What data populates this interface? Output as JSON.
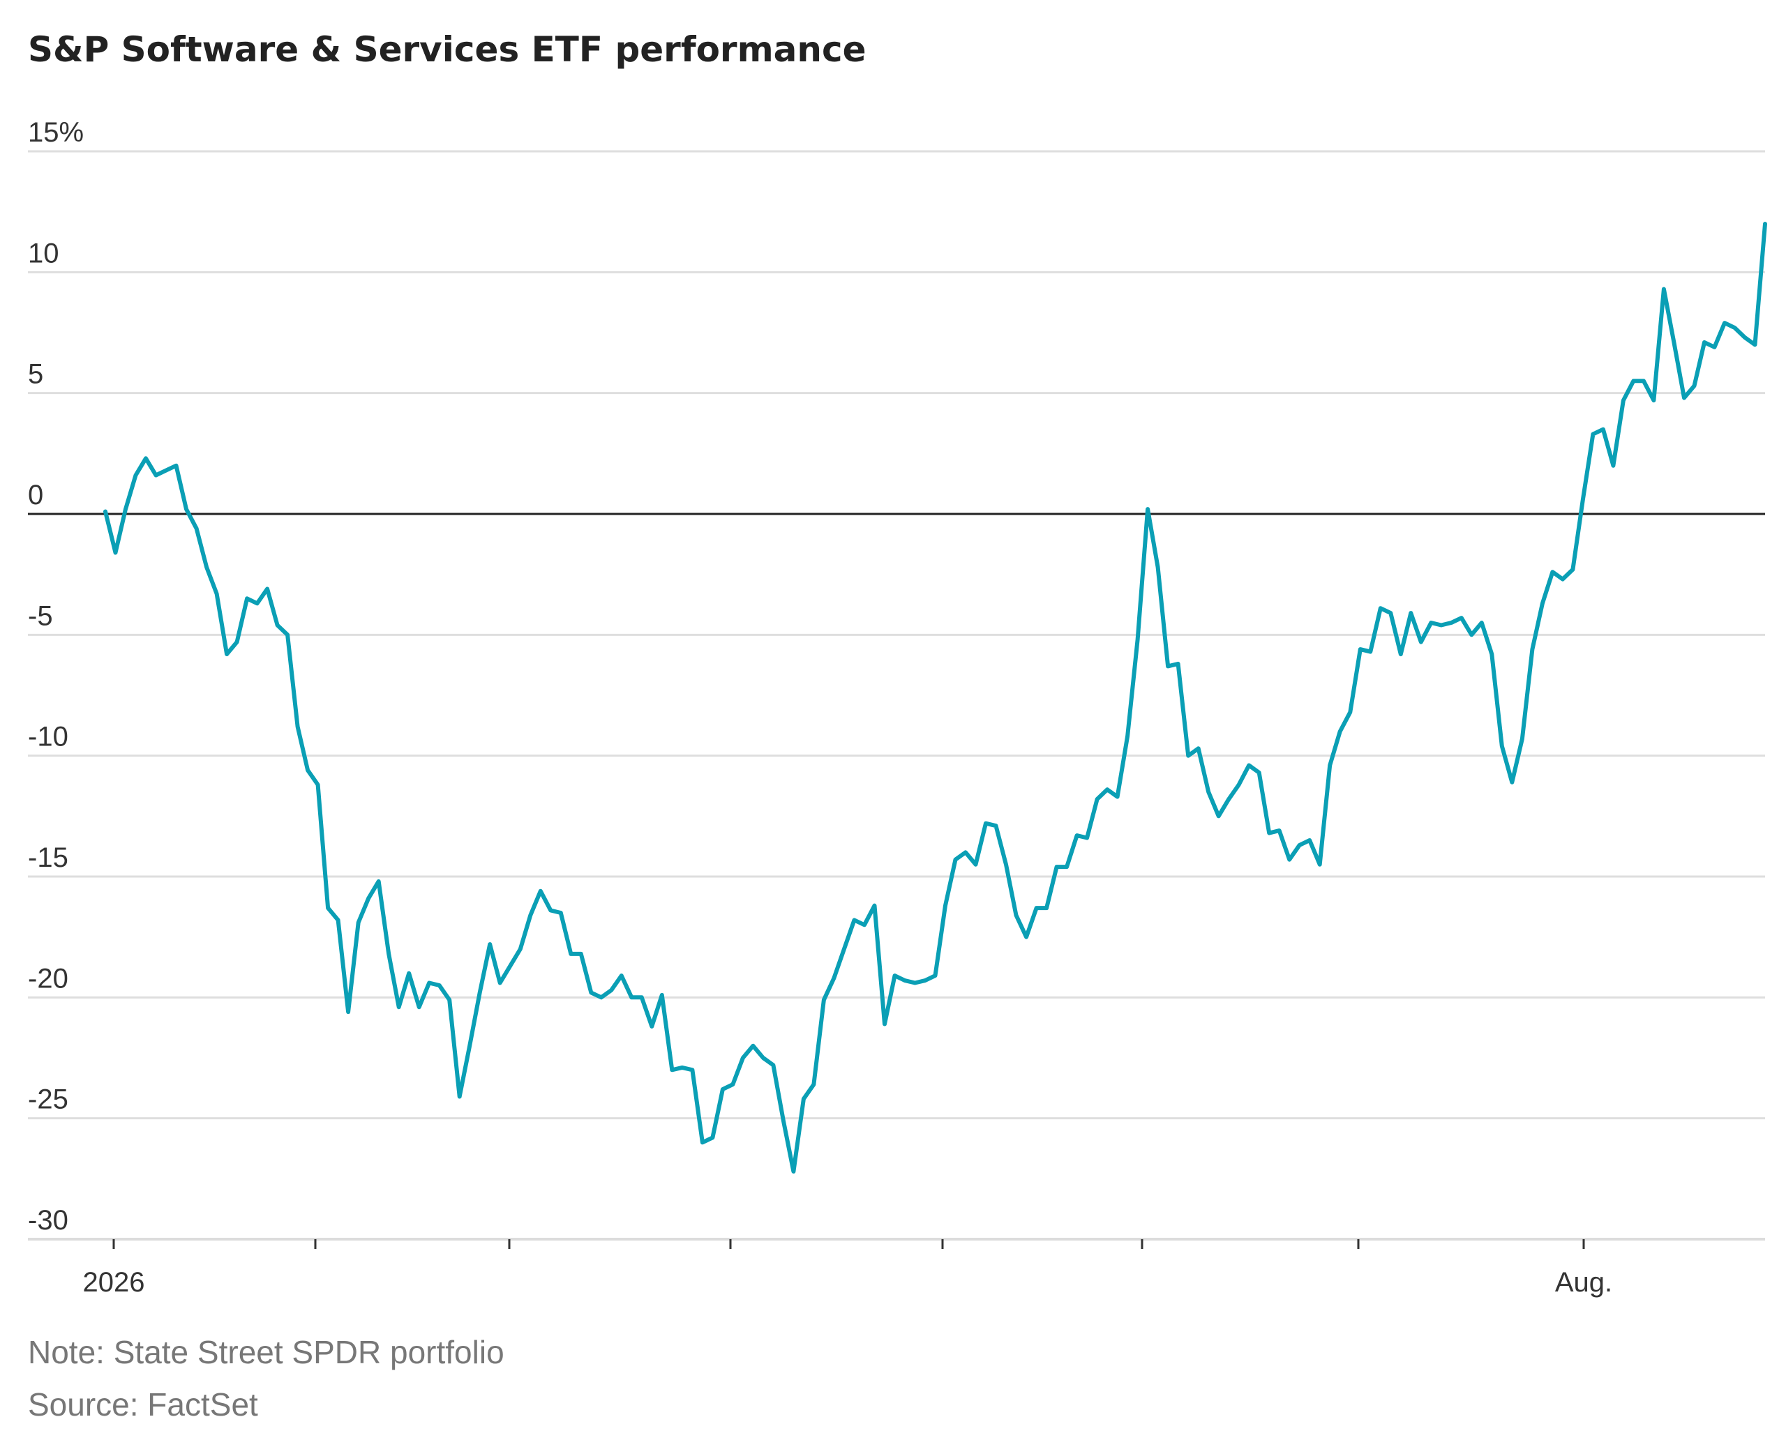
{
  "title": "S&P Software & Services ETF performance",
  "note": "Note: State Street SPDR portfolio",
  "source": "Source: FactSet",
  "colors": {
    "line": "#0a9fb5",
    "zero_line": "#222222",
    "grid": "#dedede"
  },
  "chart_data": {
    "type": "line",
    "title": "S&P Software & Services ETF performance",
    "ylim": [
      -30,
      15
    ],
    "y_ticks": [
      "15%",
      "10",
      "5",
      "0",
      "-5",
      "-10",
      "-15",
      "-20",
      "-25",
      "-30"
    ],
    "x_tick_labels": [
      "2026",
      "Aug."
    ],
    "grid": true,
    "series": [
      {
        "values": [
          0.1,
          -1.6,
          0.2,
          1.6,
          2.3,
          1.6,
          1.8,
          2.0,
          0.2,
          -0.6,
          -2.2,
          -3.3,
          -5.8,
          -5.3,
          -3.5,
          -3.7,
          -3.1,
          -4.6,
          -5.0,
          -8.8,
          -10.6,
          -11.2,
          -16.3,
          -16.8,
          -20.6,
          -16.9,
          -15.9,
          -15.2,
          -18.2,
          -20.4,
          -19.0,
          -20.4,
          -19.4,
          -19.5,
          -20.1,
          -24.1,
          -22.0,
          -19.8,
          -17.8,
          -19.4,
          -18.7,
          -18.0,
          -16.6,
          -15.6,
          -16.4,
          -16.5,
          -18.2,
          -18.2,
          -19.8,
          -20.0,
          -19.7,
          -19.1,
          -20.0,
          -20.0,
          -21.2,
          -19.9,
          -23.0,
          -22.9,
          -23.0,
          -26.0,
          -25.8,
          -23.8,
          -23.6,
          -22.5,
          -22.0,
          -22.5,
          -22.8,
          -25.1,
          -27.2,
          -24.2,
          -23.6,
          -20.1,
          -19.2,
          -18.0,
          -16.8,
          -17.0,
          -16.2,
          -21.1,
          -19.1,
          -19.3,
          -19.4,
          -19.3,
          -19.1,
          -16.2,
          -14.3,
          -14.0,
          -14.5,
          -12.8,
          -12.9,
          -14.5,
          -16.6,
          -17.5,
          -16.3,
          -16.3,
          -14.6,
          -14.6,
          -13.3,
          -13.4,
          -11.8,
          -11.4,
          -11.7,
          -9.2,
          -5.2,
          0.2,
          -2.2,
          -6.3,
          -6.2,
          -10.0,
          -9.7,
          -11.5,
          -12.5,
          -11.8,
          -11.2,
          -10.4,
          -10.7,
          -13.2,
          -13.1,
          -14.3,
          -13.7,
          -13.5,
          -14.5,
          -10.4,
          -9.0,
          -8.2,
          -5.6,
          -5.7,
          -3.9,
          -4.1,
          -5.8,
          -4.1,
          -5.3,
          -4.5,
          -4.6,
          -4.5,
          -4.3,
          -5.0,
          -4.5,
          -5.8,
          -9.6,
          -11.1,
          -9.3,
          -5.6,
          -3.7,
          -2.4,
          -2.7,
          -2.3,
          0.6,
          3.3,
          3.5,
          2.0,
          4.7,
          5.5,
          5.5,
          4.7,
          9.3,
          7.1,
          4.8,
          5.3,
          7.1,
          6.9,
          7.9,
          7.7,
          7.3,
          7.0,
          12.0
        ]
      }
    ]
  }
}
